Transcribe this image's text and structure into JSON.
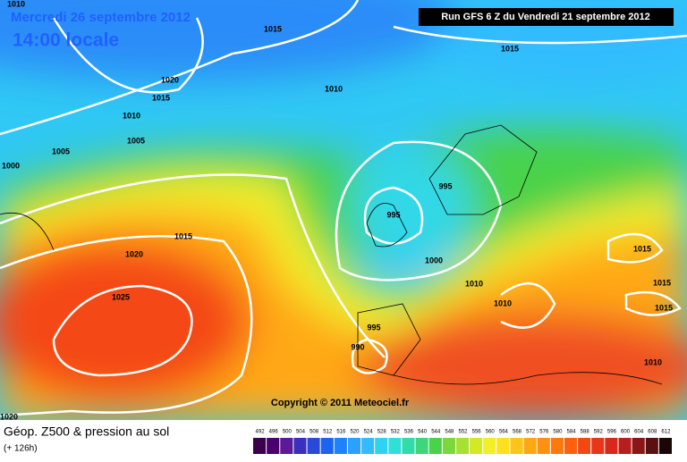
{
  "header": {
    "date": "Mercredi 26 septembre 2012",
    "time": "14:00 locale",
    "run": "Run GFS 6 Z du Vendredi 21 septembre 2012"
  },
  "copyright": "Copyright © 2011 Meteociel.fr",
  "caption": {
    "title": "Géop. Z500 & pression au sol",
    "lead": "(+ 126h)"
  },
  "isobar_labels": [
    1010,
    1015,
    1015,
    1020,
    1015,
    1010,
    1005,
    1005,
    1000,
    1010,
    995,
    995,
    1015,
    1020,
    1000,
    1010,
    1025,
    1010,
    995,
    990,
    1015,
    1015,
    1015,
    1010,
    1020
  ],
  "legend": {
    "ticks": [
      492,
      496,
      500,
      504,
      508,
      512,
      516,
      520,
      524,
      528,
      532,
      536,
      540,
      544,
      548,
      552,
      556,
      560,
      564,
      568,
      572,
      576,
      580,
      584,
      588,
      592,
      596,
      600,
      604,
      608,
      612
    ],
    "colors": [
      "#3a0048",
      "#4b0070",
      "#5a1a9a",
      "#3b2fc0",
      "#2a49d8",
      "#1b64ee",
      "#1c82ff",
      "#2aa0ff",
      "#33bbff",
      "#2ed2f2",
      "#30e0d8",
      "#2fdcaa",
      "#3ed67a",
      "#4ad24a",
      "#7ad83a",
      "#a8e030",
      "#d4e828",
      "#f2ee2a",
      "#ffe020",
      "#ffc418",
      "#ffa812",
      "#ff9010",
      "#ff780e",
      "#ff600e",
      "#f44812",
      "#e83618",
      "#d8281c",
      "#b81e1e",
      "#8c1616",
      "#5a1010",
      "#1a0808"
    ]
  }
}
